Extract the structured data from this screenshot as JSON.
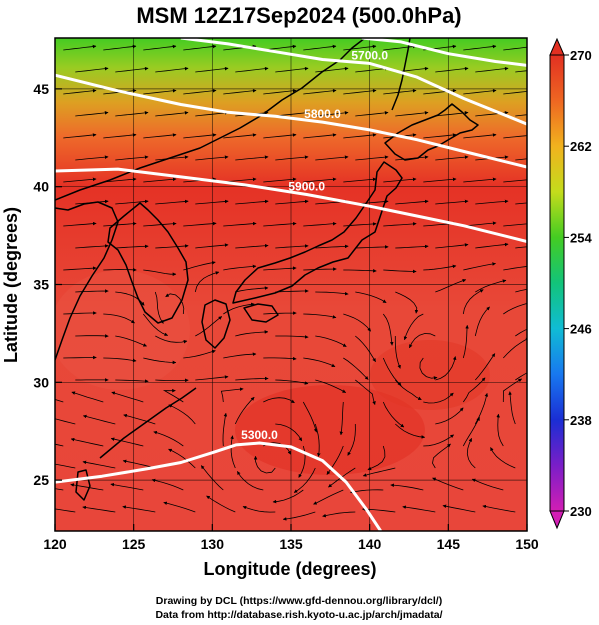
{
  "chart_data": {
    "type": "heatmap",
    "title": "MSM 12Z17Sep2024 (500.0hPa)",
    "xlabel": "Longitude (degrees)",
    "ylabel": "Latitude  (degrees)",
    "xlim": [
      120,
      150
    ],
    "ylim": [
      22.4,
      47.6
    ],
    "xticks": [
      120,
      125,
      130,
      135,
      140,
      145,
      150
    ],
    "yticks": [
      25,
      30,
      35,
      40,
      45
    ],
    "grid": true,
    "colorbar": {
      "min": 230,
      "max": 270,
      "ticks": [
        230,
        238,
        246,
        254,
        262,
        270
      ],
      "position": "right"
    },
    "contours": [
      {
        "label": "5300.0",
        "points": [
          [
            120,
            24.9
          ],
          [
            123,
            25.2
          ],
          [
            126,
            25.6
          ],
          [
            128,
            25.9
          ],
          [
            130,
            26.4
          ],
          [
            131.5,
            26.8
          ],
          [
            133,
            26.9
          ],
          [
            135,
            26.7
          ],
          [
            137,
            26.0
          ],
          [
            138.5,
            24.9
          ],
          [
            139.8,
            23.5
          ],
          [
            140.7,
            22.4
          ]
        ]
      },
      {
        "label": "5900.0",
        "points": [
          [
            120,
            40.8
          ],
          [
            124,
            40.9
          ],
          [
            128,
            40.5
          ],
          [
            132,
            40.1
          ],
          [
            136,
            39.6
          ],
          [
            140,
            39.0
          ],
          [
            143,
            38.5
          ],
          [
            146,
            38.0
          ],
          [
            150,
            37.2
          ]
        ]
      },
      {
        "label": "5800.0",
        "points": [
          [
            120,
            45.7
          ],
          [
            124,
            44.9
          ],
          [
            128,
            44.2
          ],
          [
            131,
            43.8
          ],
          [
            134,
            43.6
          ],
          [
            137,
            43.3
          ],
          [
            140,
            42.9
          ],
          [
            143,
            42.4
          ],
          [
            146,
            41.8
          ],
          [
            150,
            41.0
          ]
        ]
      },
      {
        "label": "5700.0",
        "points": [
          [
            128,
            47.6
          ],
          [
            131,
            47.3
          ],
          [
            134,
            46.9
          ],
          [
            137,
            46.5
          ],
          [
            140,
            46.3
          ],
          [
            143,
            45.6
          ],
          [
            146,
            44.5
          ],
          [
            150,
            43.2
          ]
        ]
      },
      {
        "label": "",
        "points": [
          [
            139.5,
            47.6
          ],
          [
            142,
            47.4
          ],
          [
            145,
            46.8
          ],
          [
            148,
            46.4
          ],
          [
            150,
            46.2
          ]
        ]
      }
    ],
    "contour_color": "#ffffff"
  },
  "credits": {
    "line1": "Drawing by DCL (https://www.gfd-dennou.org/library/dcl/)",
    "line2": "Data from http://database.rish.kyoto-u.ac.jp/arch/jmadata/"
  }
}
